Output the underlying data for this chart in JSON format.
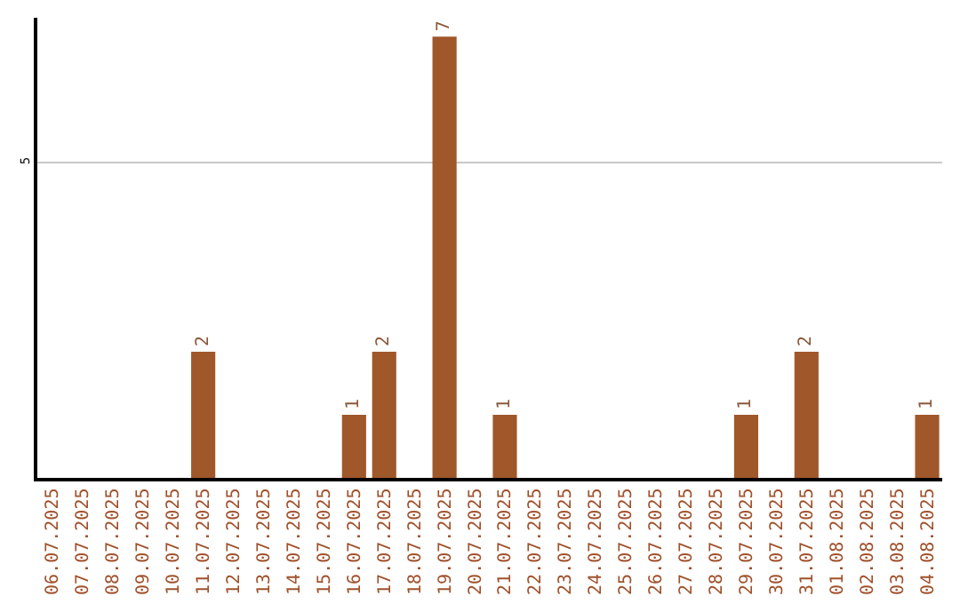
{
  "chart_data": {
    "type": "bar",
    "categories": [
      "06.07.2025",
      "07.07.2025",
      "08.07.2025",
      "09.07.2025",
      "10.07.2025",
      "11.07.2025",
      "12.07.2025",
      "13.07.2025",
      "14.07.2025",
      "15.07.2025",
      "16.07.2025",
      "17.07.2025",
      "18.07.2025",
      "19.07.2025",
      "20.07.2025",
      "21.07.2025",
      "22.07.2025",
      "23.07.2025",
      "24.07.2025",
      "25.07.2025",
      "26.07.2025",
      "27.07.2025",
      "28.07.2025",
      "29.07.2025",
      "30.07.2025",
      "31.07.2025",
      "01.08.2025",
      "02.08.2025",
      "03.08.2025",
      "04.08.2025"
    ],
    "values": [
      0,
      0,
      0,
      0,
      0,
      2,
      0,
      0,
      0,
      0,
      1,
      2,
      0,
      7,
      0,
      1,
      0,
      0,
      0,
      0,
      0,
      0,
      0,
      1,
      0,
      2,
      0,
      0,
      0,
      1
    ],
    "value_labels": [
      null,
      null,
      null,
      null,
      null,
      "2",
      null,
      null,
      null,
      null,
      "1",
      "2",
      null,
      "7",
      null,
      "1",
      null,
      null,
      null,
      null,
      null,
      null,
      null,
      "1",
      null,
      "2",
      null,
      null,
      null,
      "1"
    ],
    "color": "#a0572a",
    "ylim": [
      0,
      7.3
    ],
    "yticks": [
      0,
      5
    ],
    "grid": "y"
  }
}
